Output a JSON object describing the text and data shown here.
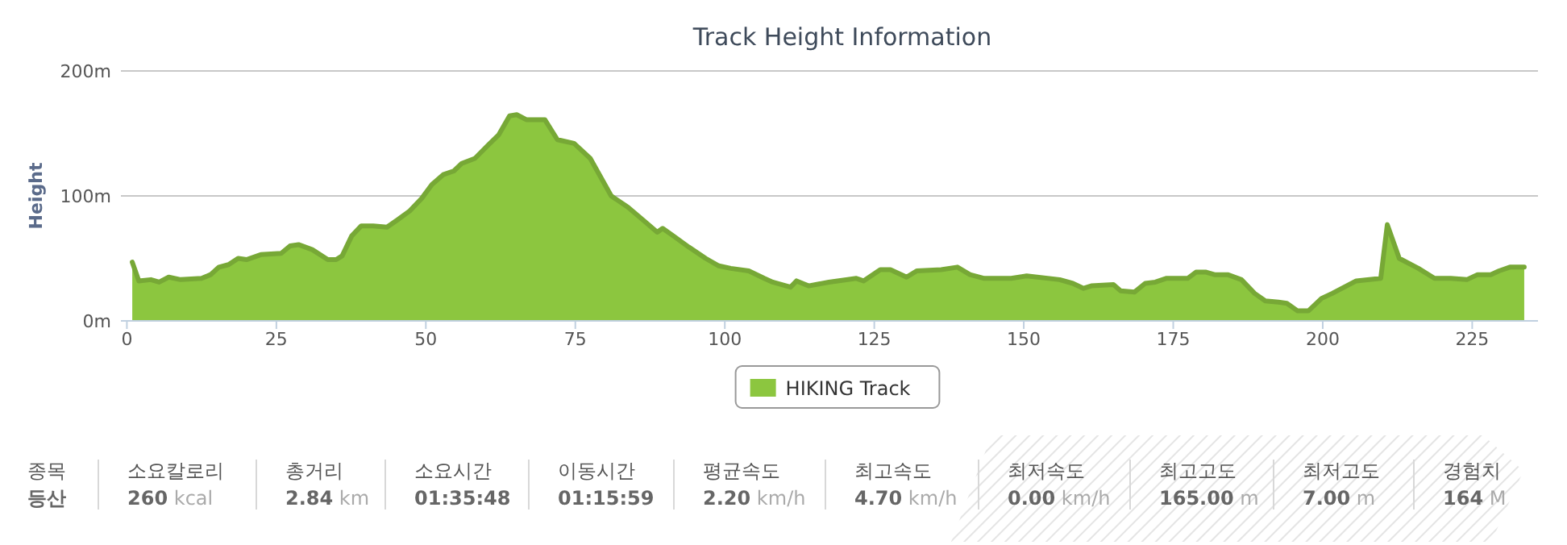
{
  "chart_data": [
    {
      "type": "area",
      "title": "Track Height Information",
      "ylabel": "Height",
      "xlim": [
        -1,
        236
      ],
      "ylim": [
        0,
        200
      ],
      "xticks": [
        0,
        25,
        50,
        75,
        100,
        125,
        150,
        175,
        200,
        225
      ],
      "yticks": [
        {
          "value": 0,
          "label": "0m"
        },
        {
          "value": 100,
          "label": "100m"
        },
        {
          "value": 200,
          "label": "200m"
        }
      ],
      "grid": "y",
      "legend": "bottom",
      "series": [
        {
          "name": "HIKING Track",
          "color": "#8cc63f",
          "x": [
            0.9,
            2,
            4,
            5.4,
            7,
            9,
            12.5,
            14,
            15.4,
            17,
            18.6,
            20,
            22.4,
            25.8,
            27.3,
            28.7,
            31,
            33.6,
            35,
            36,
            37.6,
            39.2,
            41.2,
            43.5,
            45.3,
            47.3,
            49.3,
            51,
            52.9,
            54.7,
            56,
            58.2,
            60.5,
            62.2,
            64,
            65.2,
            66.8,
            69.9,
            72,
            74.8,
            77.5,
            81,
            83.8,
            86.5,
            88.7,
            89.6,
            91.4,
            94,
            96.8,
            99,
            101,
            104,
            106.6,
            108,
            111,
            112,
            114,
            117.4,
            122,
            123.2,
            126,
            127.7,
            130.4,
            132.1,
            136.2,
            138.9,
            141,
            143.4,
            147.9,
            150.5,
            156,
            158.2,
            160,
            161.3,
            165,
            166.2,
            168.5,
            170.3,
            172,
            173.8,
            177.4,
            178.8,
            180.5,
            181.9,
            184.1,
            186.4,
            188.6,
            190.4,
            192.6,
            194,
            195.8,
            197.6,
            199.8,
            201.6,
            205.6,
            209.7,
            210.8,
            212.8,
            216,
            218.7,
            221.4,
            224.1,
            225.9,
            228.1,
            229.5,
            231.3,
            233.7
          ],
          "values": [
            47,
            32,
            33,
            31,
            35,
            33,
            34,
            37,
            43,
            45,
            50,
            49,
            53,
            54,
            60,
            61,
            57,
            49,
            49,
            52,
            68,
            76,
            76,
            75,
            81,
            88,
            98,
            109,
            117,
            120,
            126,
            130,
            141,
            149,
            164,
            165,
            161,
            161,
            145,
            142,
            130,
            100,
            91,
            80,
            71,
            74,
            68,
            59,
            50,
            44,
            42,
            40,
            34,
            31,
            27,
            32,
            28,
            31,
            34,
            32,
            41,
            41,
            35,
            40,
            41,
            43,
            37,
            34,
            34,
            36,
            33,
            30,
            26,
            28,
            29,
            24,
            23,
            30,
            31,
            34,
            34,
            39,
            39,
            37,
            37,
            33,
            22,
            16,
            15,
            14,
            8,
            8,
            18,
            22,
            32,
            34,
            77,
            50,
            42,
            34,
            34,
            33,
            37,
            37,
            40,
            43,
            43
          ]
        }
      ]
    },
    {
      "type": "other",
      "categories": [
        "종목",
        "소요칼로리",
        "총거리",
        "소요시간",
        "이동시간",
        "평균속도",
        "최고속도",
        "최저속도",
        "최고고도",
        "최저고도",
        "경험치"
      ],
      "value_labels": [
        "**등산**",
        "**260** kcal",
        "**2.84** km",
        "**01:35:48**",
        "**01:15:59**",
        "**2.20** km/h",
        "**4.70** km/h",
        "**0.00** km/h",
        "**165.00** m",
        "**7.00** m",
        "**164** M"
      ]
    }
  ]
}
